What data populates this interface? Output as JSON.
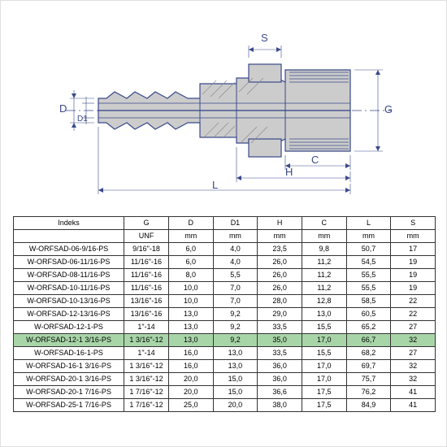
{
  "diagram": {
    "labels": {
      "S": "S",
      "G": "G",
      "D": "D",
      "D1": "D1",
      "C": "C",
      "H": "H",
      "L": "L"
    },
    "stroke_color": "#3a4a8a",
    "fill_color": "#cccccc",
    "hatch_color": "#888888"
  },
  "table": {
    "headers_row1": [
      "Indeks",
      "G",
      "D",
      "D1",
      "H",
      "C",
      "L",
      "S"
    ],
    "headers_row2": [
      "",
      "UNF",
      "mm",
      "mm",
      "mm",
      "mm",
      "mm",
      "mm"
    ],
    "rows": [
      {
        "cells": [
          "W-ORFSAD-06-9/16-PS",
          "9/16\"-18",
          "6,0",
          "4,0",
          "23,5",
          "9,8",
          "50,7",
          "17"
        ],
        "highlight": false
      },
      {
        "cells": [
          "W-ORFSAD-06-11/16-PS",
          "11/16\"-16",
          "6,0",
          "4,0",
          "26,0",
          "11,2",
          "54,5",
          "19"
        ],
        "highlight": false
      },
      {
        "cells": [
          "W-ORFSAD-08-11/16-PS",
          "11/16\"-16",
          "8,0",
          "5,5",
          "26,0",
          "11,2",
          "55,5",
          "19"
        ],
        "highlight": false
      },
      {
        "cells": [
          "W-ORFSAD-10-11/16-PS",
          "11/16\"-16",
          "10,0",
          "7,0",
          "26,0",
          "11,2",
          "55,5",
          "19"
        ],
        "highlight": false
      },
      {
        "cells": [
          "W-ORFSAD-10-13/16-PS",
          "13/16\"-16",
          "10,0",
          "7,0",
          "28,0",
          "12,8",
          "58,5",
          "22"
        ],
        "highlight": false
      },
      {
        "cells": [
          "W-ORFSAD-12-13/16-PS",
          "13/16\"-16",
          "13,0",
          "9,2",
          "29,0",
          "13,0",
          "60,5",
          "22"
        ],
        "highlight": false
      },
      {
        "cells": [
          "W-ORFSAD-12-1-PS",
          "1\"-14",
          "13,0",
          "9,2",
          "33,5",
          "15,5",
          "65,2",
          "27"
        ],
        "highlight": false
      },
      {
        "cells": [
          "W-ORFSAD-12-1 3/16-PS",
          "1 3/16\"-12",
          "13,0",
          "9,2",
          "35,0",
          "17,0",
          "66,7",
          "32"
        ],
        "highlight": true
      },
      {
        "cells": [
          "W-ORFSAD-16-1-PS",
          "1\"-14",
          "16,0",
          "13,0",
          "33,5",
          "15,5",
          "68,2",
          "27"
        ],
        "highlight": false
      },
      {
        "cells": [
          "W-ORFSAD-16-1 3/16-PS",
          "1 3/16\"-12",
          "16,0",
          "13,0",
          "36,0",
          "17,0",
          "69,7",
          "32"
        ],
        "highlight": false
      },
      {
        "cells": [
          "W-ORFSAD-20-1 3/16-PS",
          "1 3/16\"-12",
          "20,0",
          "15,0",
          "36,0",
          "17,0",
          "75,7",
          "32"
        ],
        "highlight": false
      },
      {
        "cells": [
          "W-ORFSAD-20-1 7/16-PS",
          "1 7/16\"-12",
          "20,0",
          "15,0",
          "36,6",
          "17,5",
          "76,2",
          "41"
        ],
        "highlight": false
      },
      {
        "cells": [
          "W-ORFSAD-25-1 7/16-PS",
          "1 7/16\"-12",
          "25,0",
          "20,0",
          "38,0",
          "17,5",
          "84,9",
          "41"
        ],
        "highlight": false
      }
    ]
  }
}
